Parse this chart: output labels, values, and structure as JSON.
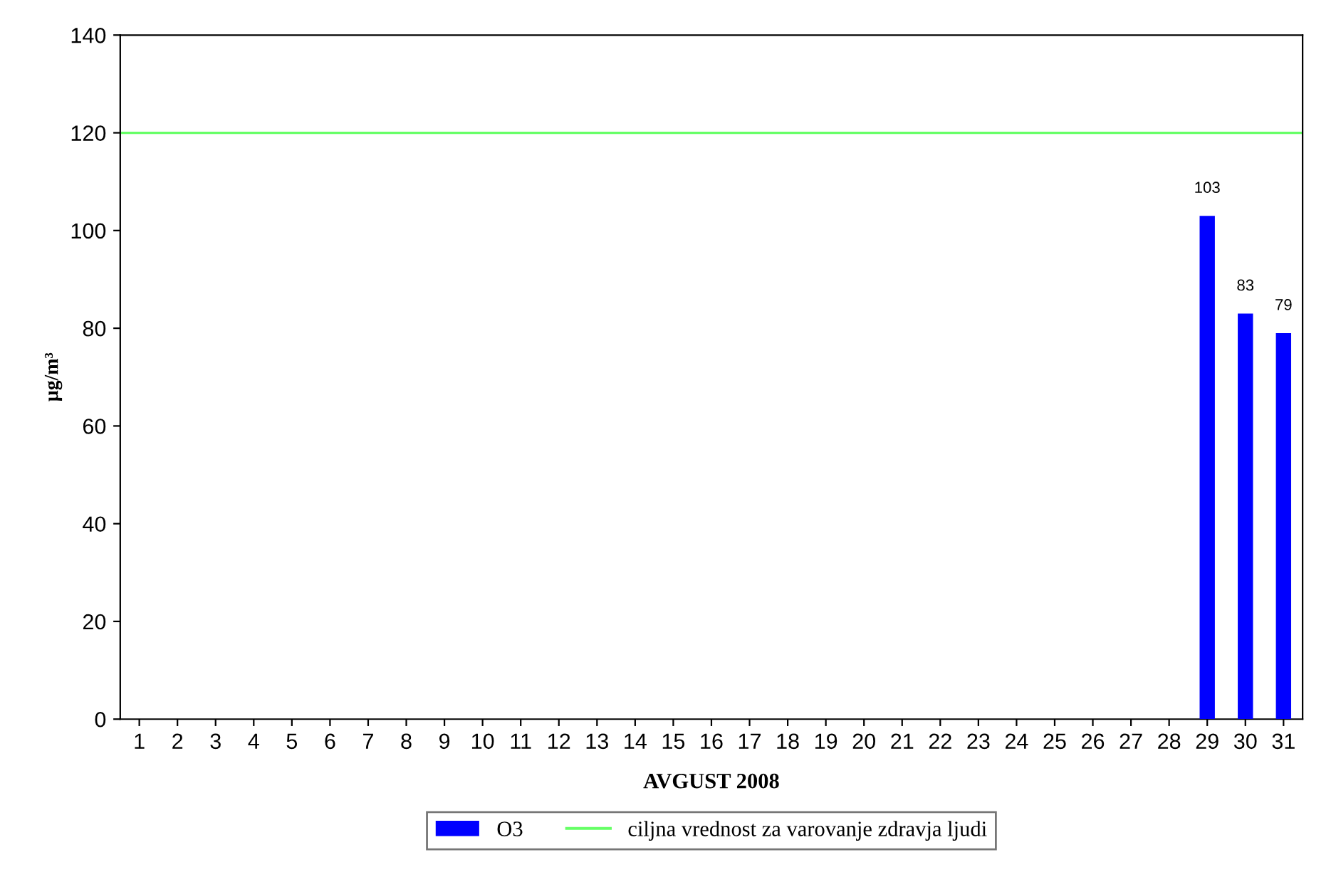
{
  "chart_data": {
    "type": "bar",
    "xlabel": "AVGUST 2008",
    "ylabel": "µg/m³",
    "categories": [
      "1",
      "2",
      "3",
      "4",
      "5",
      "6",
      "7",
      "8",
      "9",
      "10",
      "11",
      "12",
      "13",
      "14",
      "15",
      "16",
      "17",
      "18",
      "19",
      "20",
      "21",
      "22",
      "23",
      "24",
      "25",
      "26",
      "27",
      "28",
      "29",
      "30",
      "31"
    ],
    "series": [
      {
        "name": "O3",
        "color": "#0000ff",
        "values": [
          null,
          null,
          null,
          null,
          null,
          null,
          null,
          null,
          null,
          null,
          null,
          null,
          null,
          null,
          null,
          null,
          null,
          null,
          null,
          null,
          null,
          null,
          null,
          null,
          null,
          null,
          null,
          null,
          103,
          83,
          79
        ]
      }
    ],
    "ref_lines": [
      {
        "axis": "y",
        "value": 120,
        "label": "ciljna vrednost za varovanje zdravja ljudi",
        "color": "#66ff66",
        "line_style": "solid"
      }
    ],
    "ylim": [
      0,
      140
    ],
    "yticks": [
      0,
      20,
      40,
      60,
      80,
      100,
      120,
      140
    ],
    "data_labels": true,
    "grid": false,
    "legend": "bottom"
  }
}
